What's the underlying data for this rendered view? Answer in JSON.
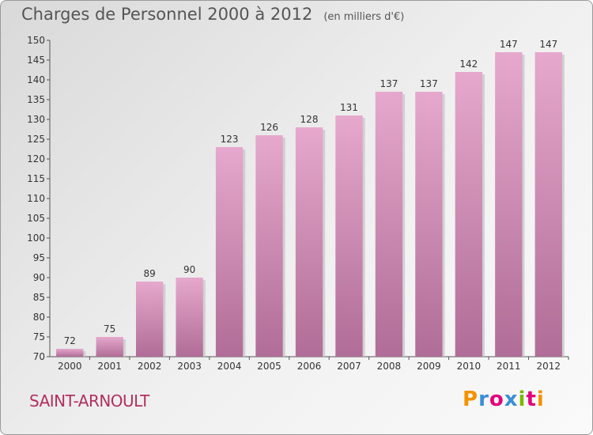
{
  "title": "Charges de Personnel 2000 à 2012",
  "subtitle": "(en milliers d'€)",
  "commune": "SAINT-ARNOULT",
  "logo": {
    "letters": [
      "P",
      "r",
      "o",
      "x",
      "i",
      "t",
      "i"
    ],
    "colors": [
      "#f39200",
      "#3a8fd6",
      "#e3007a",
      "#3a8fd6",
      "#7ab800",
      "#e3007a",
      "#f39200"
    ]
  },
  "colors": {
    "bar_top": "#e6a8cc",
    "bar_bottom": "#b06d97",
    "label": "#b03060"
  },
  "chart_data": {
    "type": "bar",
    "title": "Charges de Personnel 2000 à 2012",
    "categories": [
      "2000",
      "2001",
      "2002",
      "2003",
      "2004",
      "2005",
      "2006",
      "2007",
      "2008",
      "2009",
      "2010",
      "2011",
      "2012"
    ],
    "values": [
      72,
      75,
      89,
      90,
      123,
      126,
      128,
      131,
      137,
      137,
      142,
      147,
      147
    ],
    "ylim": [
      70,
      150
    ],
    "yticks": [
      70,
      75,
      80,
      85,
      90,
      95,
      100,
      105,
      110,
      115,
      120,
      125,
      130,
      135,
      140,
      145,
      150
    ],
    "grid": false,
    "data_labels": true
  }
}
